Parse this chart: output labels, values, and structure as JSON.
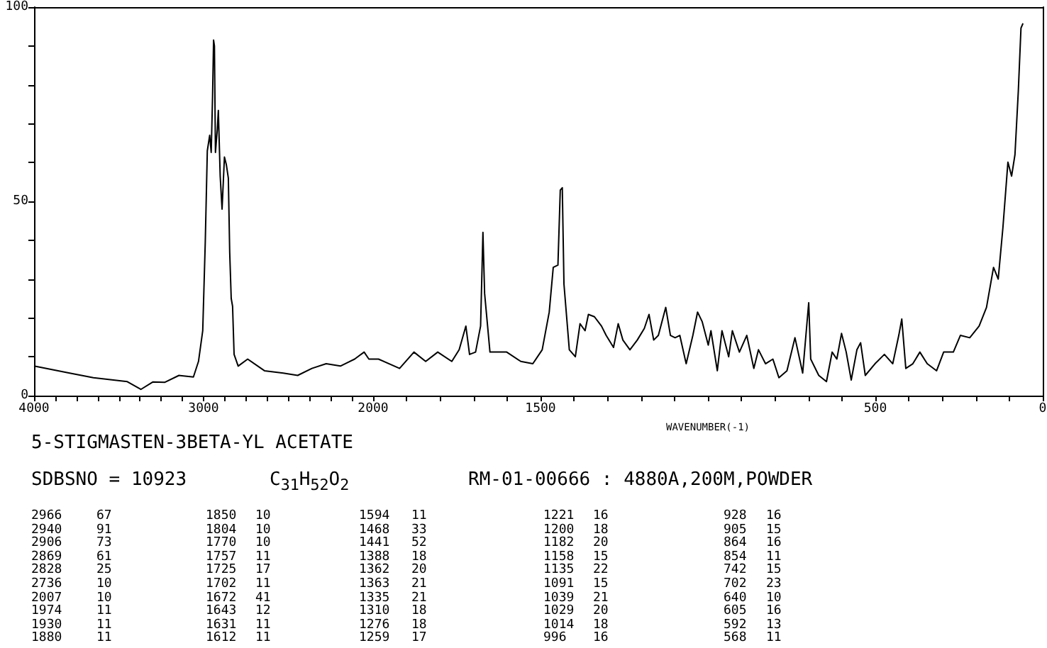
{
  "chart_data": [
    {
      "type": "line",
      "grid": false,
      "xlim": [
        4000,
        2000
      ],
      "ylim": [
        0,
        100
      ],
      "xticks": [
        4000,
        {
          "value": 3875,
          "label": null
        },
        {
          "value": 3750,
          "label": null
        },
        {
          "value": 3625,
          "label": null
        },
        {
          "value": 3500,
          "label": null
        },
        {
          "value": 3375,
          "label": null
        },
        {
          "value": 3250,
          "label": null
        },
        {
          "value": 3125,
          "label": null
        },
        3000,
        {
          "value": 2875,
          "label": null
        },
        {
          "value": 2750,
          "label": null
        },
        {
          "value": 2625,
          "label": null
        },
        {
          "value": 2500,
          "label": null
        },
        {
          "value": 2375,
          "label": null
        },
        {
          "value": 2250,
          "label": null
        },
        {
          "value": 2125,
          "label": null
        },
        2000
      ],
      "yticks": [
        0,
        {
          "value": 10,
          "label": null
        },
        {
          "value": 20,
          "label": null
        },
        {
          "value": 30,
          "label": null
        },
        {
          "value": 40,
          "label": null
        },
        50,
        {
          "value": 60,
          "label": null
        },
        {
          "value": 70,
          "label": null
        },
        {
          "value": 80,
          "label": null
        },
        {
          "value": 90,
          "label": null
        },
        100
      ],
      "series": [
        {
          "color": "#000000",
          "x": [
            4000,
            3790,
            3650,
            3450,
            3370,
            3300,
            3230,
            3145,
            3060,
            3030,
            3005,
            2990,
            2978,
            2964,
            2955,
            2947,
            2941,
            2936,
            2930,
            2919,
            2913,
            2902,
            2891,
            2877,
            2866,
            2854,
            2846,
            2837,
            2829,
            2820,
            2796,
            2740,
            2641,
            2530,
            2445,
            2361,
            2277,
            2193,
            2109,
            2053,
            2025,
            2000
          ],
          "values": [
            7.6,
            5.8,
            4.6,
            3.6,
            1.6,
            3.5,
            3.4,
            5.2,
            4.8,
            8.8,
            16.7,
            39.6,
            63,
            67,
            62.6,
            77,
            91.5,
            90,
            62.6,
            68.6,
            73.4,
            56.5,
            48,
            61.4,
            59.5,
            56,
            37,
            25,
            23,
            10.6,
            7.6,
            9.4,
            6.4,
            5.8,
            5.2,
            7,
            8.2,
            7.6,
            9.4,
            11.2,
            9.4,
            9.4
          ]
        }
      ],
      "annotations": [
        "5-STIGMASTEN-3BETA-YL ACETATE",
        "SDBSNO = 10923",
        "C$_{31}$H$_{52}$O$_{2}$",
        "RM-01-00666 : 4880A,200M,POWDER",
        "2966 67",
        "2940 91",
        "2906 73",
        "2869 61",
        "2828 25",
        "2736 10",
        "2007 10",
        "1974 11",
        "1930 11",
        "1880 11",
        "1850 10",
        "1804 10",
        "1770 10",
        "1757 11",
        "1725 17",
        "1702 11",
        "1672 41",
        "1643 12",
        "1631 11",
        "1612 11",
        "1594 11",
        "1468 33",
        "1441 52",
        "1388 18",
        "1362 20",
        "1363 21",
        "1335 21",
        "1310 18",
        "1276 18",
        "1259 17",
        "1221 16",
        "1200 18",
        "1182 20",
        "1158 15",
        "1135 22",
        "1091 15",
        "1039 21",
        "1029 20",
        "1014 18",
        "996 16",
        "928 16",
        "905 15",
        "864 16",
        "854 11",
        "742 15",
        "702 23",
        "640 10",
        "605 16",
        "592 13",
        "568 11"
      ]
    },
    {
      "type": "line",
      "xlabel": "WAVENUMBER(-1)",
      "tick_labels": "x",
      "xlim": [
        2000,
        0
      ],
      "ylim": [
        0,
        100
      ],
      "xticks": [
        {
          "value": 2000,
          "label": null
        },
        {
          "value": 1900,
          "label": null
        },
        {
          "value": 1800,
          "label": null
        },
        {
          "value": 1700,
          "label": null
        },
        {
          "value": 1600,
          "label": null
        },
        1500,
        {
          "value": 1400,
          "label": null
        },
        {
          "value": 1300,
          "label": null
        },
        {
          "value": 1200,
          "label": null
        },
        {
          "value": 1100,
          "label": null
        },
        {
          "value": 1000,
          "label": null
        },
        {
          "value": 900,
          "label": null
        },
        {
          "value": 800,
          "label": null
        },
        {
          "value": 700,
          "label": null
        },
        {
          "value": 600,
          "label": null
        },
        500,
        {
          "value": 400,
          "label": null
        },
        {
          "value": 300,
          "label": null
        },
        {
          "value": 200,
          "label": null
        },
        {
          "value": 100,
          "label": null
        },
        0
      ],
      "series": [
        {
          "color": "#000000",
          "x": [
            2000,
            1984,
            1921,
            1878,
            1843,
            1807,
            1765,
            1743,
            1723,
            1712,
            1694,
            1679,
            1672,
            1667,
            1651,
            1601,
            1559,
            1523,
            1495,
            1474,
            1462,
            1448,
            1441,
            1435,
            1430,
            1414,
            1396,
            1382,
            1367,
            1357,
            1339,
            1318,
            1304,
            1282,
            1268,
            1254,
            1233,
            1211,
            1190,
            1176,
            1162,
            1148,
            1126,
            1112,
            1098,
            1084,
            1065,
            1045,
            1031,
            1017,
            999,
            991,
            972,
            958,
            938,
            927,
            906,
            884,
            863,
            849,
            828,
            806,
            788,
            764,
            740,
            717,
            699,
            693,
            669,
            646,
            629,
            615,
            601,
            587,
            572,
            555,
            544,
            530,
            501,
            473,
            448,
            430,
            421,
            409,
            388,
            367,
            345,
            317,
            296,
            267,
            246,
            218,
            190,
            168,
            147,
            133,
            119,
            104,
            93,
            83,
            73,
            65,
            59
          ],
          "values": [
            9.4,
            9.4,
            7,
            11.2,
            8.8,
            11.2,
            8.8,
            11.8,
            17.9,
            10.6,
            11.2,
            17.9,
            42,
            26.3,
            11.2,
            11.2,
            8.8,
            8.2,
            11.8,
            21.5,
            33,
            33.6,
            52.9,
            53.5,
            28.7,
            11.8,
            10,
            18.5,
            16.7,
            20.9,
            20.3,
            17.9,
            15.5,
            12.4,
            18.5,
            14.3,
            11.8,
            14.3,
            17.3,
            20.9,
            14.3,
            15.5,
            22.7,
            15.5,
            14.9,
            15.5,
            8.2,
            15.5,
            21.5,
            19,
            13,
            16.7,
            6.4,
            16.7,
            10,
            16.7,
            11.2,
            15.5,
            7,
            11.8,
            8.2,
            9.4,
            4.6,
            6.4,
            14.9,
            5.8,
            23.9,
            9.4,
            5.2,
            3.6,
            11.2,
            9.4,
            16,
            11.2,
            4,
            11.8,
            13.6,
            5.2,
            8.2,
            10.6,
            8.2,
            15.5,
            19.7,
            7,
            8.2,
            11.2,
            8.2,
            6.4,
            11.2,
            11.2,
            15.5,
            14.9,
            17.9,
            22.7,
            33,
            30,
            43.2,
            60.1,
            56.5,
            62,
            78.3,
            94.6,
            95.8
          ]
        }
      ]
    }
  ]
}
